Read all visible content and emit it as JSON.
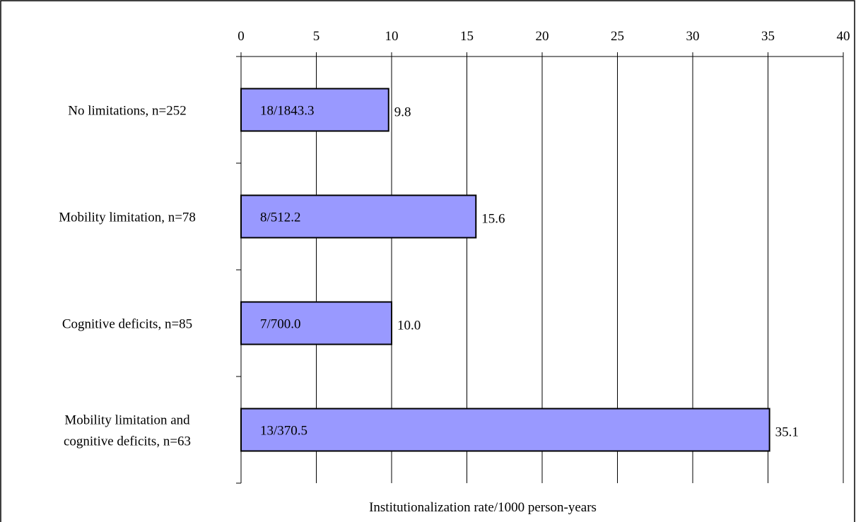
{
  "chart_data": {
    "type": "bar",
    "orientation": "horizontal",
    "categories": [
      [
        "No limitations, n=252"
      ],
      [
        "Mobility limitation, n=78"
      ],
      [
        "Cognitive deficits, n=85"
      ],
      [
        "Mobility limitation and",
        "cognitive deficits, n=63"
      ]
    ],
    "values": [
      9.8,
      15.6,
      10.0,
      35.1
    ],
    "value_labels": [
      "9.8",
      "15.6",
      "10.0",
      "35.1"
    ],
    "bar_labels": [
      "18/1843.3",
      "8/512.2",
      "7/700.0",
      "13/370.5"
    ],
    "xticks": [
      "0",
      "5",
      "10",
      "15",
      "20",
      "25",
      "30",
      "35",
      "40"
    ],
    "xlim": [
      0,
      40
    ],
    "xlabel": "Institutionalization rate/1000 person-years",
    "ylabel": "",
    "title": "",
    "grid": true,
    "x_axis_position": "top",
    "bar_color": "#9999FF"
  }
}
